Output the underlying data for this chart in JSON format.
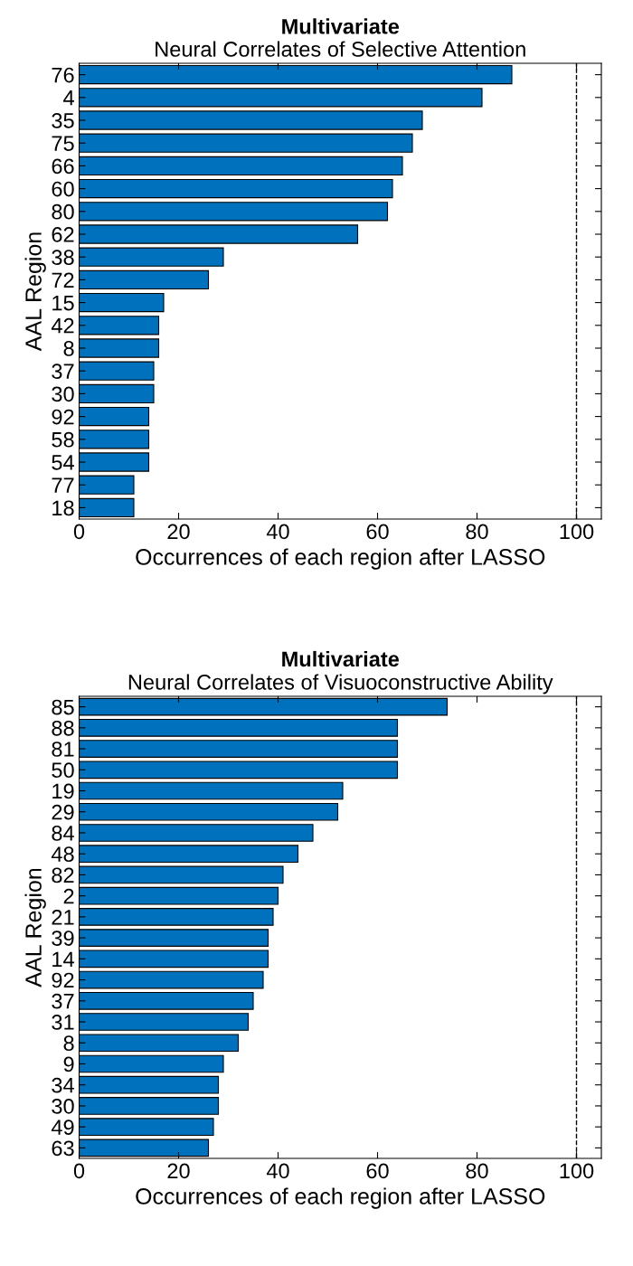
{
  "chart_data": [
    {
      "type": "bar",
      "orientation": "horizontal",
      "title": "Multivariate",
      "subtitle": "Neural Correlates of Selective Attention",
      "xlabel": "Occurrences of each region after LASSO",
      "ylabel": "AAL Region",
      "categories": [
        "76",
        "4",
        "35",
        "75",
        "66",
        "60",
        "80",
        "62",
        "38",
        "72",
        "15",
        "42",
        "8",
        "37",
        "30",
        "92",
        "58",
        "54",
        "77",
        "18"
      ],
      "values": [
        87,
        81,
        69,
        67,
        65,
        63,
        62,
        56,
        29,
        26,
        17,
        16,
        16,
        15,
        15,
        14,
        14,
        14,
        11,
        11
      ],
      "color": "#0072bd",
      "xlim": [
        0,
        105
      ],
      "xticks": [
        0,
        20,
        40,
        60,
        80,
        100
      ],
      "grid": false,
      "legend": false,
      "ref_lines": [
        {
          "axis": "x",
          "value": 100,
          "color": "#000000",
          "line_style": "dashed"
        }
      ]
    },
    {
      "type": "bar",
      "orientation": "horizontal",
      "title": "Multivariate",
      "subtitle": "Neural Correlates of Visuoconstructive Ability",
      "xlabel": "Occurrences of each region after LASSO",
      "ylabel": "AAL Region",
      "categories": [
        "85",
        "88",
        "81",
        "50",
        "19",
        "29",
        "84",
        "48",
        "82",
        "2",
        "21",
        "39",
        "14",
        "92",
        "37",
        "31",
        "8",
        "9",
        "34",
        "30",
        "49",
        "63"
      ],
      "values": [
        74,
        64,
        64,
        64,
        53,
        52,
        47,
        44,
        41,
        40,
        39,
        38,
        38,
        37,
        35,
        34,
        32,
        29,
        28,
        28,
        27,
        26
      ],
      "color": "#0072bd",
      "xlim": [
        0,
        105
      ],
      "xticks": [
        0,
        20,
        40,
        60,
        80,
        100
      ],
      "grid": false,
      "legend": false,
      "ref_lines": [
        {
          "axis": "x",
          "value": 100,
          "color": "#000000",
          "line_style": "dashed"
        }
      ]
    }
  ]
}
